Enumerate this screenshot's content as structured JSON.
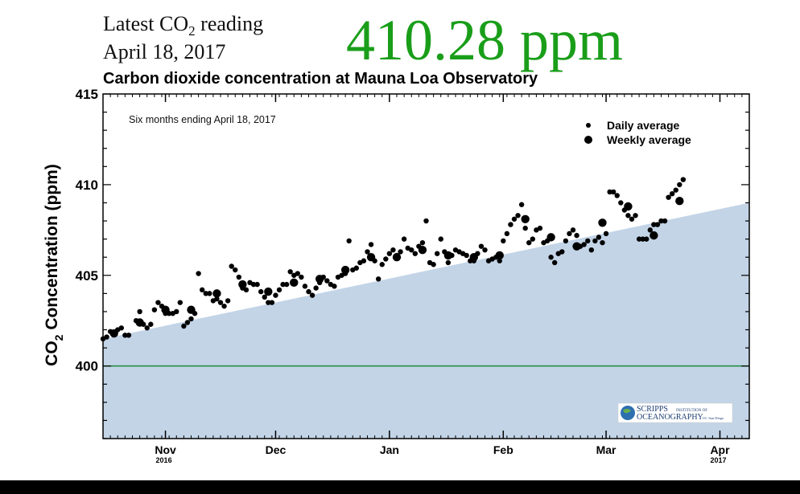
{
  "header": {
    "latest_label_pre": "Latest CO",
    "latest_label_sub": "2",
    "latest_label_post": " reading",
    "date": "April 18, 2017",
    "reading": "410.28 ppm",
    "reading_color": "#1a9e1a"
  },
  "logo": {
    "line1": "SCRIPPS",
    "line1_small": "INSTITUTION OF",
    "line2": "OCEANOGRAPHY",
    "line2_small": "UC San Diego"
  },
  "chart_data": {
    "type": "scatter",
    "title": "Carbon dioxide concentration at Mauna Loa Observatory",
    "subtitle": "Six months ending April 18, 2017",
    "ylabel_pre": "CO",
    "ylabel_sub": "2",
    "ylabel_post": " Concentration (ppm)",
    "xlim": [
      0,
      176
    ],
    "ylim": [
      396,
      415
    ],
    "yticks": [
      400,
      405,
      410,
      415
    ],
    "reference_line": 400,
    "reference_color": "#1a8a3a",
    "fill_color": "#c3d4e7",
    "trend": [
      [
        0,
        401.5
      ],
      [
        176,
        409.0
      ]
    ],
    "month_ticks": [
      {
        "label": "Nov",
        "x": 17,
        "year": "2016"
      },
      {
        "label": "Dec",
        "x": 47,
        "year": ""
      },
      {
        "label": "Jan",
        "x": 78,
        "year": ""
      },
      {
        "label": "Feb",
        "x": 109,
        "year": ""
      },
      {
        "label": "Mar",
        "x": 137,
        "year": ""
      },
      {
        "label": "Apr",
        "x": 168,
        "year": "2017"
      }
    ],
    "legend": [
      {
        "label": "Daily average",
        "size": "small"
      },
      {
        "label": "Weekly average",
        "size": "large"
      }
    ],
    "series": [
      {
        "name": "Daily average",
        "points": [
          [
            0,
            401.5
          ],
          [
            1,
            401.6
          ],
          [
            2,
            401.9
          ],
          [
            3,
            401.8
          ],
          [
            4,
            402.0
          ],
          [
            5,
            402.1
          ],
          [
            6,
            401.7
          ],
          [
            7,
            401.7
          ],
          [
            9,
            402.5
          ],
          [
            10,
            403.0
          ],
          [
            11,
            402.3
          ],
          [
            12,
            402.1
          ],
          [
            13,
            402.3
          ],
          [
            14,
            403.1
          ],
          [
            15,
            403.5
          ],
          [
            16,
            403.3
          ],
          [
            17,
            402.9
          ],
          [
            18,
            402.9
          ],
          [
            19,
            402.9
          ],
          [
            20,
            403.0
          ],
          [
            21,
            403.5
          ],
          [
            22,
            402.2
          ],
          [
            23,
            402.4
          ],
          [
            24,
            402.6
          ],
          [
            25,
            402.9
          ],
          [
            26,
            405.1
          ],
          [
            27,
            404.2
          ],
          [
            28,
            404.0
          ],
          [
            29,
            404.0
          ],
          [
            30,
            403.6
          ],
          [
            31,
            403.7
          ],
          [
            32,
            403.5
          ],
          [
            33,
            403.3
          ],
          [
            34,
            403.6
          ],
          [
            35,
            405.5
          ],
          [
            36,
            405.3
          ],
          [
            37,
            404.9
          ],
          [
            38,
            404.3
          ],
          [
            39,
            404.2
          ],
          [
            40,
            404.6
          ],
          [
            41,
            404.5
          ],
          [
            42,
            404.5
          ],
          [
            43,
            404.1
          ],
          [
            44,
            403.8
          ],
          [
            45,
            403.5
          ],
          [
            46,
            403.5
          ],
          [
            47,
            403.9
          ],
          [
            48,
            404.2
          ],
          [
            49,
            404.5
          ],
          [
            50,
            404.5
          ],
          [
            51,
            405.2
          ],
          [
            52,
            405.0
          ],
          [
            53,
            405.1
          ],
          [
            54,
            404.9
          ],
          [
            55,
            404.4
          ],
          [
            56,
            404.1
          ],
          [
            57,
            403.9
          ],
          [
            58,
            404.3
          ],
          [
            59,
            404.6
          ],
          [
            60,
            404.9
          ],
          [
            61,
            404.7
          ],
          [
            62,
            404.5
          ],
          [
            63,
            404.4
          ],
          [
            64,
            404.9
          ],
          [
            65,
            405.0
          ],
          [
            66,
            405.1
          ],
          [
            67,
            406.9
          ],
          [
            68,
            405.3
          ],
          [
            69,
            405.4
          ],
          [
            70,
            405.7
          ],
          [
            71,
            405.8
          ],
          [
            72,
            406.3
          ],
          [
            73,
            406.7
          ],
          [
            74,
            405.8
          ],
          [
            75,
            404.8
          ],
          [
            76,
            405.6
          ],
          [
            77,
            405.9
          ],
          [
            78,
            406.2
          ],
          [
            79,
            406.4
          ],
          [
            80,
            406.1
          ],
          [
            81,
            406.3
          ],
          [
            82,
            407.0
          ],
          [
            83,
            406.5
          ],
          [
            84,
            406.4
          ],
          [
            85,
            406.2
          ],
          [
            86,
            406.6
          ],
          [
            87,
            406.8
          ],
          [
            88,
            408.0
          ],
          [
            89,
            405.7
          ],
          [
            90,
            405.6
          ],
          [
            91,
            406.2
          ],
          [
            92,
            407.0
          ],
          [
            93,
            406.3
          ],
          [
            94,
            405.7
          ],
          [
            95,
            406.1
          ],
          [
            96,
            406.4
          ],
          [
            97,
            406.3
          ],
          [
            98,
            406.2
          ],
          [
            99,
            406.1
          ],
          [
            100,
            405.8
          ],
          [
            101,
            405.8
          ],
          [
            102,
            406.2
          ],
          [
            103,
            406.6
          ],
          [
            104,
            406.4
          ],
          [
            105,
            405.8
          ],
          [
            106,
            405.9
          ],
          [
            107,
            406.0
          ],
          [
            108,
            405.8
          ],
          [
            109,
            406.9
          ],
          [
            110,
            407.3
          ],
          [
            111,
            407.8
          ],
          [
            112,
            408.1
          ],
          [
            113,
            408.3
          ],
          [
            114,
            408.9
          ],
          [
            115,
            407.6
          ],
          [
            116,
            406.8
          ],
          [
            117,
            407.0
          ],
          [
            118,
            407.5
          ],
          [
            119,
            407.6
          ],
          [
            120,
            406.8
          ],
          [
            121,
            406.9
          ],
          [
            122,
            406.0
          ],
          [
            123,
            405.7
          ],
          [
            124,
            406.2
          ],
          [
            125,
            406.3
          ],
          [
            126,
            406.9
          ],
          [
            127,
            407.3
          ],
          [
            128,
            407.5
          ],
          [
            129,
            407.2
          ],
          [
            130,
            406.6
          ],
          [
            131,
            406.7
          ],
          [
            132,
            406.9
          ],
          [
            133,
            406.4
          ],
          [
            134,
            406.9
          ],
          [
            135,
            407.1
          ],
          [
            136,
            406.8
          ],
          [
            137,
            407.3
          ],
          [
            138,
            409.6
          ],
          [
            139,
            409.6
          ],
          [
            140,
            409.4
          ],
          [
            141,
            409.0
          ],
          [
            142,
            408.6
          ],
          [
            143,
            408.3
          ],
          [
            144,
            408.1
          ],
          [
            145,
            408.3
          ],
          [
            146,
            407.0
          ],
          [
            147,
            407.0
          ],
          [
            148,
            407.0
          ],
          [
            149,
            407.5
          ],
          [
            150,
            407.8
          ],
          [
            151,
            407.8
          ],
          [
            152,
            408.0
          ],
          [
            153,
            408.0
          ],
          [
            154,
            409.3
          ],
          [
            155,
            409.5
          ],
          [
            156,
            409.7
          ],
          [
            157,
            410.0
          ],
          [
            158,
            410.28
          ]
        ]
      },
      {
        "name": "Weekly average",
        "points": [
          [
            3,
            401.8
          ],
          [
            10,
            402.4
          ],
          [
            17,
            403.1
          ],
          [
            24,
            403.1
          ],
          [
            31,
            404.0
          ],
          [
            38,
            404.5
          ],
          [
            45,
            404.1
          ],
          [
            52,
            404.6
          ],
          [
            59,
            404.8
          ],
          [
            66,
            405.3
          ],
          [
            73,
            406.0
          ],
          [
            80,
            406.0
          ],
          [
            87,
            406.4
          ],
          [
            94,
            406.1
          ],
          [
            101,
            406.0
          ],
          [
            108,
            406.1
          ],
          [
            115,
            408.1
          ],
          [
            122,
            407.1
          ],
          [
            129,
            406.6
          ],
          [
            136,
            407.9
          ],
          [
            143,
            408.8
          ],
          [
            150,
            407.2
          ],
          [
            157,
            409.1
          ]
        ]
      }
    ]
  }
}
